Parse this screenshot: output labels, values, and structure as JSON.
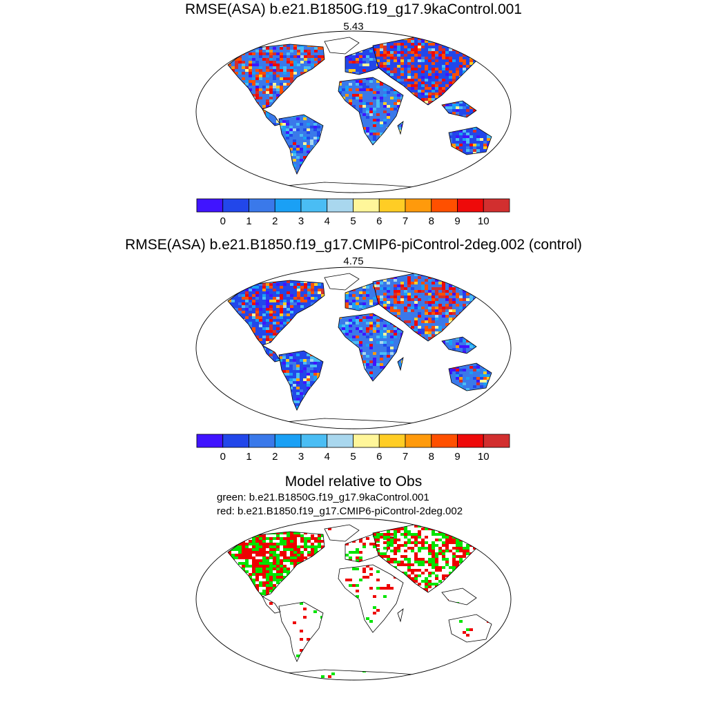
{
  "panels": [
    {
      "title": "RMSE(ASA) b.e21.B1850G.f19_g17.9kaControl.001",
      "value": "5.43",
      "dominant_color": "#2e6be6",
      "hot_regions": [
        "north-america",
        "siberia",
        "central-asia"
      ]
    },
    {
      "title": "RMSE(ASA) b.e21.B1850.f19_g17.CMIP6-piControl-2deg.002 (control)",
      "value": "4.75",
      "dominant_color": "#3a8ff0",
      "hot_regions": [
        "arctic-canada",
        "siberia",
        "central-asia"
      ]
    }
  ],
  "colorbar": {
    "colors": [
      "#4014ff",
      "#2247ea",
      "#3a79ea",
      "#1aa0f5",
      "#4abdf4",
      "#a9d7ee",
      "#fff69a",
      "#ffcd25",
      "#ff9a0c",
      "#ff5000",
      "#ee0a0a",
      "#d22f2f"
    ],
    "tick_labels": [
      "0",
      "1",
      "2",
      "3",
      "4",
      "5",
      "6",
      "7",
      "8",
      "9",
      "10"
    ]
  },
  "comparison": {
    "title": "Model relative to Obs",
    "green_label": "green: b.e21.B1850G.f19_g17.9kaControl.001",
    "red_label": "red: b.e21.B1850.f19_g17.CMIP6-piControl-2deg.002",
    "green_color": "#00e400",
    "red_color": "#ee0000"
  }
}
